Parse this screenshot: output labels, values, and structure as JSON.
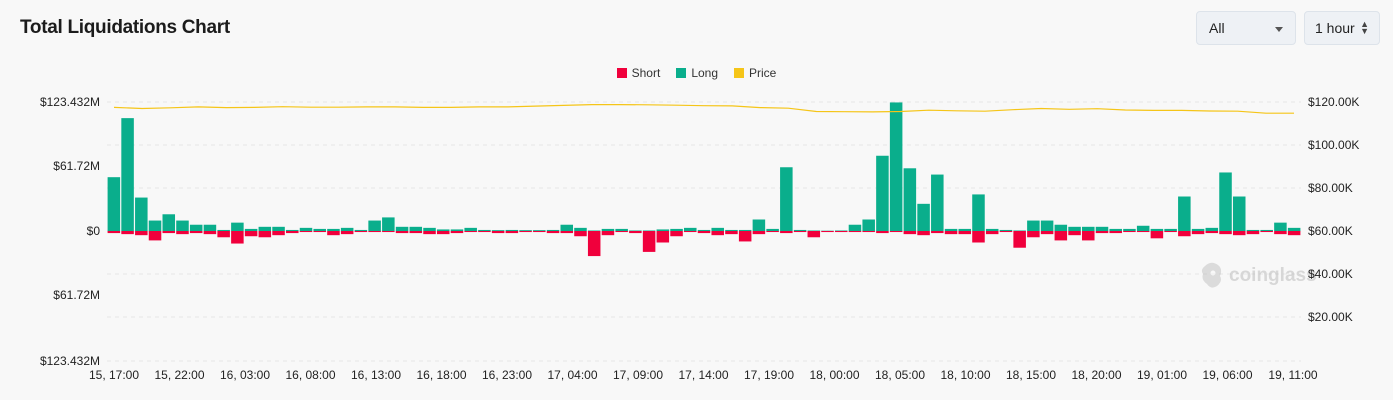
{
  "header": {
    "title": "Total Liquidations Chart"
  },
  "controls": {
    "filter_value": "All",
    "interval_value": "1 hour"
  },
  "watermark": {
    "text": "coinglass",
    "icon": "coinglass-logo-icon"
  },
  "colors": {
    "short": "#f0003c",
    "long": "#0aae8c",
    "price": "#f5c518",
    "grid": "#e6e6e6"
  },
  "chart_data": {
    "type": "bar",
    "legend": [
      {
        "name": "Short",
        "color": "#f0003c"
      },
      {
        "name": "Long",
        "color": "#0aae8c"
      },
      {
        "name": "Price",
        "color": "#f5c518"
      }
    ],
    "legend_position": "top-center",
    "y_left_ticks": [
      "$123.432M",
      "$61.72M",
      "$0",
      "$61.72M",
      "$123.432M"
    ],
    "y_left_range": [
      -123.432,
      123.432
    ],
    "y_left_unit": "M",
    "y_right_ticks": [
      "$120.00K",
      "$100.00K",
      "$80.00K",
      "$60.00K",
      "$40.00K",
      "$20.00K"
    ],
    "y_right_range": [
      0,
      120000
    ],
    "x_tick_labels": [
      "15, 17:00",
      "15, 22:00",
      "16, 03:00",
      "16, 08:00",
      "16, 13:00",
      "16, 18:00",
      "16, 23:00",
      "17, 04:00",
      "17, 09:00",
      "17, 14:00",
      "17, 19:00",
      "18, 00:00",
      "18, 05:00",
      "18, 10:00",
      "18, 15:00",
      "18, 20:00",
      "19, 01:00",
      "19, 06:00",
      "19, 11:00"
    ],
    "grid": true,
    "series": [
      {
        "name": "Long",
        "values": [
          51.5,
          108,
          32,
          10,
          16,
          10,
          6,
          6,
          1,
          8,
          2,
          4,
          4,
          1,
          3,
          2,
          2,
          3,
          1,
          10,
          13,
          4,
          4,
          3,
          1.5,
          1.5,
          3,
          1,
          0.8,
          1,
          0.8,
          0.8,
          1,
          6,
          3,
          0.5,
          2,
          2,
          0.5,
          0.5,
          1.5,
          2,
          3,
          1,
          3,
          1,
          1,
          11,
          2,
          61,
          1,
          0.5,
          0.3,
          0.5,
          6,
          11,
          72,
          123,
          60,
          26,
          54,
          2,
          2,
          35,
          2,
          1,
          0.5,
          10,
          10,
          6,
          4,
          4,
          4,
          2,
          2,
          5,
          2,
          2,
          33,
          2,
          3,
          56,
          33,
          1,
          1,
          8,
          3
        ]
      },
      {
        "name": "Short",
        "values": [
          2,
          3,
          4,
          9,
          2,
          3,
          2,
          3,
          6,
          12,
          5,
          6,
          4,
          2,
          1,
          1,
          4,
          3,
          1,
          1,
          1,
          2,
          2,
          3,
          3,
          2,
          1,
          1,
          2,
          2,
          1,
          1,
          2,
          2,
          5,
          24,
          4,
          1,
          2,
          20,
          11,
          5,
          1,
          2,
          4,
          3,
          10,
          3,
          1,
          2,
          1,
          6,
          1,
          1,
          1,
          1,
          2,
          1,
          3,
          4,
          2,
          3,
          3,
          11,
          3,
          1,
          16,
          6,
          3,
          9,
          4,
          9,
          2,
          2,
          1,
          1,
          7,
          1,
          5,
          3,
          2,
          3,
          4,
          3,
          1,
          3,
          4
        ]
      },
      {
        "name": "Price",
        "values": [
          117500,
          117000,
          117300,
          117700,
          117400,
          117500,
          117800,
          117600,
          117600,
          117700,
          117700,
          117500,
          117500,
          117700,
          117700,
          118100,
          118400,
          118800,
          118800,
          118700,
          118500,
          118300,
          118200,
          117400,
          117100,
          115600,
          115500,
          115400,
          115600,
          116200,
          115900,
          115700,
          116400,
          117000,
          116600,
          116900,
          116300,
          116100,
          116100,
          115800,
          115700,
          114800,
          114800
        ]
      }
    ]
  }
}
